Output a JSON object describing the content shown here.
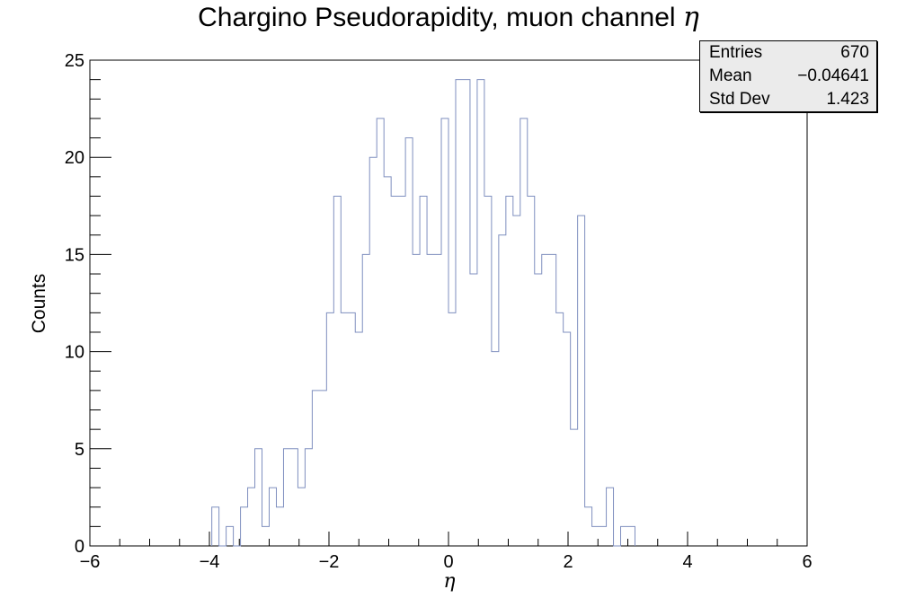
{
  "chart_data": {
    "type": "histogram",
    "title": "Chargino Pseudorapidity, muon channel",
    "title_symbol": "η",
    "xlabel": "η",
    "ylabel": "Counts",
    "xlim": [
      -6,
      6
    ],
    "ylim": [
      0,
      25
    ],
    "x_major_ticks": [
      -6,
      -4,
      -2,
      0,
      2,
      4,
      6
    ],
    "x_tick_labels": [
      "−6",
      "−4",
      "−2",
      "0",
      "2",
      "4",
      "6"
    ],
    "y_major_ticks": [
      0,
      5,
      10,
      15,
      20,
      25
    ],
    "y_tick_labels": [
      "0",
      "5",
      "10",
      "15",
      "20",
      "25"
    ],
    "bin_width": 0.12,
    "bin_start": -3.96,
    "counts": [
      2,
      0,
      1,
      0,
      2,
      3,
      5,
      1,
      3,
      2,
      5,
      5,
      3,
      5,
      8,
      8,
      12,
      18,
      12,
      12,
      11,
      15,
      20,
      22,
      19,
      18,
      18,
      21,
      15,
      18,
      15,
      15,
      22,
      12,
      24,
      24,
      14,
      24,
      18,
      10,
      16,
      18,
      17,
      22,
      18,
      14,
      15,
      15,
      12,
      11,
      6,
      17,
      2,
      1,
      1,
      3,
      0,
      1,
      1
    ],
    "line_color": "#7f8fbf",
    "stats": {
      "entries_label": "Entries",
      "entries_value": "670",
      "mean_label": "Mean",
      "mean_value": "−0.04641",
      "stddev_label": "Std Dev",
      "stddev_value": "1.423"
    }
  }
}
